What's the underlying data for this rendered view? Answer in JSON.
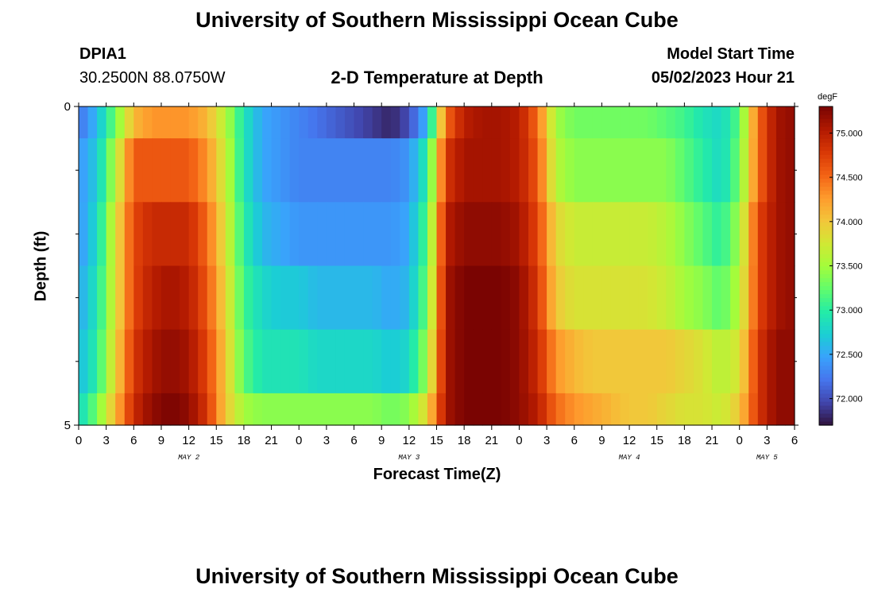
{
  "header": {
    "title": "University of Southern Mississippi Ocean Cube",
    "station_id": "DPIA1",
    "station_coords": "30.2500N  88.0750W",
    "subtitle": "2-D Temperature at Depth",
    "model_start_label": "Model Start Time",
    "model_start_value": "05/02/2023 Hour 21"
  },
  "footer": {
    "title": "University of Southern Mississippi Ocean Cube"
  },
  "chart_data": {
    "type": "heatmap",
    "title": "2-D Temperature at Depth",
    "xlabel": "Forecast Time(Z)",
    "ylabel": "Depth (ft)",
    "x_range_hours": [
      0,
      78
    ],
    "x_tick_labels": [
      "0",
      "3",
      "6",
      "9",
      "12",
      "15",
      "18",
      "21",
      "0",
      "3",
      "6",
      "9",
      "12",
      "15",
      "18",
      "21",
      "0",
      "3",
      "6",
      "9",
      "12",
      "15",
      "18",
      "21",
      "0",
      "3",
      "6"
    ],
    "day_labels": [
      {
        "label": "MAY 2",
        "hour": 12
      },
      {
        "label": "MAY 3",
        "hour": 36
      },
      {
        "label": "MAY 4",
        "hour": 60
      },
      {
        "label": "MAY 5",
        "hour": 75
      }
    ],
    "y_range_ft": [
      0,
      5
    ],
    "y_tick_labels": [
      {
        "value": 0,
        "label": "0"
      },
      {
        "value": 5,
        "label": "5"
      }
    ],
    "y_minor_ticks": [
      1,
      2,
      3,
      4
    ],
    "depth_levels_ft": [
      0.25,
      1.0,
      2.0,
      3.0,
      4.0,
      4.75
    ],
    "depth_bands_ft": [
      [
        0,
        0.5
      ],
      [
        0.5,
        1.5
      ],
      [
        1.5,
        2.5
      ],
      [
        2.5,
        3.5
      ],
      [
        3.5,
        4.5
      ],
      [
        4.5,
        5
      ]
    ],
    "time_keyframes_hours": [
      0,
      2,
      4,
      6,
      8,
      10,
      12,
      14,
      16,
      18,
      20,
      22,
      24,
      26,
      28,
      30,
      32,
      34,
      36,
      38,
      40,
      42,
      44,
      46,
      48,
      50,
      52,
      54,
      56,
      58,
      60,
      62,
      64,
      66,
      68,
      70,
      72,
      74,
      76,
      78
    ],
    "temperature_degF": [
      [
        72.2,
        72.6,
        73.3,
        74.1,
        74.3,
        74.3,
        74.3,
        74.1,
        73.6,
        72.9,
        72.5,
        72.4,
        72.3,
        72.2,
        72.1,
        72.0,
        71.9,
        71.8,
        72.0,
        72.6,
        74.5,
        75.0,
        75.1,
        75.1,
        75.0,
        74.5,
        73.5,
        73.3,
        73.3,
        73.3,
        73.3,
        73.3,
        73.2,
        73.1,
        72.9,
        72.8,
        73.2,
        74.5,
        75.1,
        75.2
      ],
      [
        72.4,
        72.7,
        73.6,
        74.6,
        74.6,
        74.6,
        74.6,
        74.3,
        73.7,
        72.9,
        72.5,
        72.4,
        72.3,
        72.3,
        72.3,
        72.3,
        72.3,
        72.3,
        72.4,
        73.0,
        74.8,
        75.1,
        75.1,
        75.1,
        75.0,
        74.6,
        73.6,
        73.4,
        73.4,
        73.4,
        73.4,
        73.4,
        73.4,
        73.2,
        73.0,
        72.8,
        73.3,
        74.5,
        75.1,
        75.2
      ],
      [
        72.4,
        72.8,
        73.8,
        74.7,
        74.9,
        74.9,
        74.9,
        74.5,
        73.8,
        73.0,
        72.6,
        72.5,
        72.4,
        72.4,
        72.4,
        72.4,
        72.4,
        72.4,
        72.5,
        73.2,
        75.0,
        75.2,
        75.2,
        75.2,
        75.1,
        74.7,
        73.9,
        73.7,
        73.7,
        73.7,
        73.7,
        73.7,
        73.6,
        73.4,
        73.2,
        73.0,
        73.5,
        74.7,
        75.1,
        75.2
      ],
      [
        72.5,
        72.9,
        73.8,
        74.7,
        75.0,
        75.1,
        75.0,
        74.6,
        73.9,
        73.1,
        72.8,
        72.7,
        72.7,
        72.6,
        72.6,
        72.6,
        72.6,
        72.5,
        72.6,
        73.3,
        75.1,
        75.3,
        75.3,
        75.3,
        75.2,
        74.8,
        74.0,
        73.8,
        73.8,
        73.8,
        73.8,
        73.8,
        73.7,
        73.5,
        73.4,
        73.2,
        73.6,
        74.7,
        75.1,
        75.2
      ],
      [
        72.6,
        73.0,
        73.9,
        74.8,
        75.1,
        75.2,
        75.1,
        74.7,
        74.0,
        73.2,
        72.9,
        72.9,
        72.9,
        72.8,
        72.8,
        72.8,
        72.8,
        72.7,
        72.8,
        73.5,
        75.1,
        75.3,
        75.3,
        75.3,
        75.2,
        74.9,
        74.3,
        74.1,
        74.0,
        74.0,
        74.0,
        74.0,
        74.0,
        73.9,
        73.8,
        73.6,
        73.8,
        74.8,
        75.2,
        75.2
      ],
      [
        72.8,
        73.3,
        74.1,
        74.9,
        75.2,
        75.3,
        75.2,
        74.8,
        74.0,
        73.5,
        73.4,
        73.4,
        73.4,
        73.4,
        73.4,
        73.4,
        73.4,
        73.3,
        73.4,
        73.9,
        75.1,
        75.3,
        75.3,
        75.3,
        75.2,
        75.0,
        74.5,
        74.3,
        74.2,
        74.1,
        74.0,
        74.0,
        73.9,
        73.8,
        73.8,
        73.7,
        74.0,
        74.8,
        75.2,
        75.2
      ]
    ],
    "colorbar": {
      "unit": "degF",
      "range": [
        71.7,
        75.3
      ],
      "tick_labels": [
        "72.000",
        "72.500",
        "73.000",
        "73.500",
        "74.000",
        "74.500",
        "75.000"
      ],
      "colormap": [
        "#30123b",
        "#4145ab",
        "#4675ed",
        "#39a2fc",
        "#1bcfd4",
        "#24eca6",
        "#61fc6c",
        "#a4fc3b",
        "#d1e834",
        "#f3c63a",
        "#fe9b2d",
        "#f36315",
        "#d93806",
        "#b11901",
        "#7a0402"
      ]
    }
  }
}
